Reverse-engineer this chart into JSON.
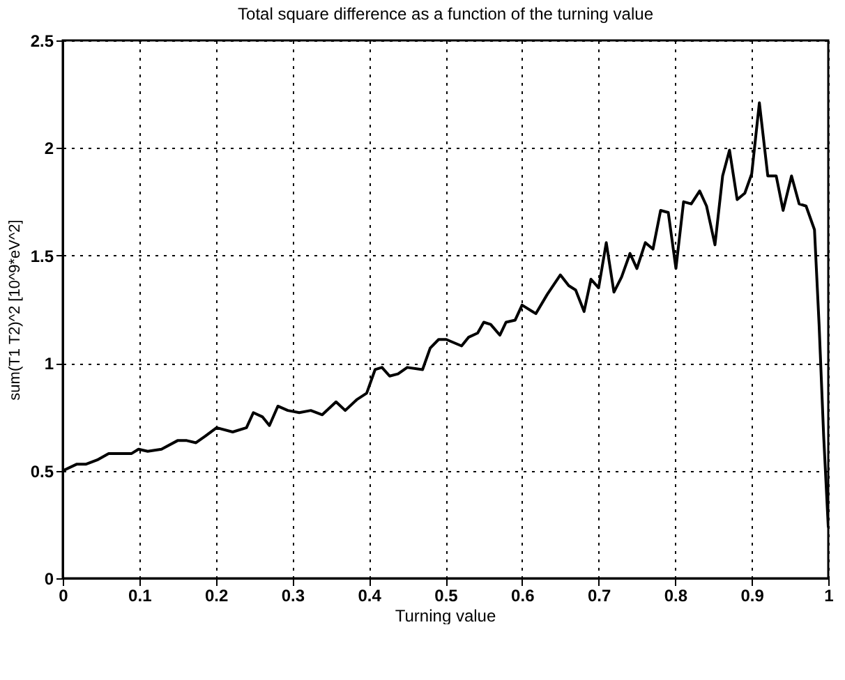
{
  "chart_data": {
    "type": "line",
    "title": "Total square difference as a function of the turning value",
    "xlabel": "Turning value",
    "ylabel": "sum(T1 T2)^2 [10^9*eV^2]",
    "x": [
      0,
      0.018,
      0.03,
      0.045,
      0.06,
      0.09,
      0.099,
      0.111,
      0.129,
      0.15,
      0.162,
      0.174,
      0.186,
      0.201,
      0.222,
      0.24,
      0.249,
      0.261,
      0.27,
      0.281,
      0.294,
      0.309,
      0.324,
      0.339,
      0.357,
      0.369,
      0.384,
      0.397,
      0.408,
      0.417,
      0.427,
      0.438,
      0.45,
      0.47,
      0.48,
      0.491,
      0.501,
      0.521,
      0.53,
      0.542,
      0.55,
      0.559,
      0.571,
      0.579,
      0.591,
      0.6,
      0.618,
      0.633,
      0.65,
      0.661,
      0.67,
      0.681,
      0.69,
      0.7,
      0.71,
      0.72,
      0.73,
      0.741,
      0.75,
      0.761,
      0.771,
      0.781,
      0.791,
      0.801,
      0.811,
      0.821,
      0.832,
      0.841,
      0.852,
      0.862,
      0.871,
      0.881,
      0.891,
      0.9,
      0.91,
      0.921,
      0.932,
      0.941,
      0.952,
      0.962,
      0.971,
      0.982,
      0.988,
      0.994,
      1
    ],
    "series": [
      {
        "color": "#000000",
        "values": [
          0.5,
          0.53,
          0.53,
          0.55,
          0.58,
          0.58,
          0.6,
          0.59,
          0.6,
          0.64,
          0.64,
          0.63,
          0.66,
          0.7,
          0.68,
          0.7,
          0.77,
          0.75,
          0.71,
          0.8,
          0.78,
          0.77,
          0.78,
          0.76,
          0.82,
          0.78,
          0.83,
          0.86,
          0.97,
          0.98,
          0.94,
          0.95,
          0.98,
          0.97,
          1.07,
          1.11,
          1.11,
          1.08,
          1.12,
          1.14,
          1.19,
          1.18,
          1.13,
          1.19,
          1.2,
          1.27,
          1.23,
          1.32,
          1.41,
          1.36,
          1.34,
          1.24,
          1.39,
          1.35,
          1.56,
          1.33,
          1.4,
          1.51,
          1.44,
          1.56,
          1.53,
          1.71,
          1.7,
          1.44,
          1.75,
          1.74,
          1.8,
          1.73,
          1.55,
          1.87,
          1.99,
          1.76,
          1.79,
          1.88,
          2.21,
          1.87,
          1.87,
          1.71,
          1.87,
          1.74,
          1.73,
          1.62,
          1.18,
          0.66,
          0.24
        ]
      }
    ],
    "xlim": [
      0,
      1
    ],
    "xticks": [
      0,
      0.1,
      0.2,
      0.3,
      0.4,
      0.5,
      0.6,
      0.7,
      0.8,
      0.9,
      1
    ],
    "ylim": [
      0,
      2.5
    ],
    "yticks": [
      0,
      0.5,
      1,
      1.5,
      2,
      2.5
    ],
    "grid": true,
    "line_style": "solid"
  }
}
